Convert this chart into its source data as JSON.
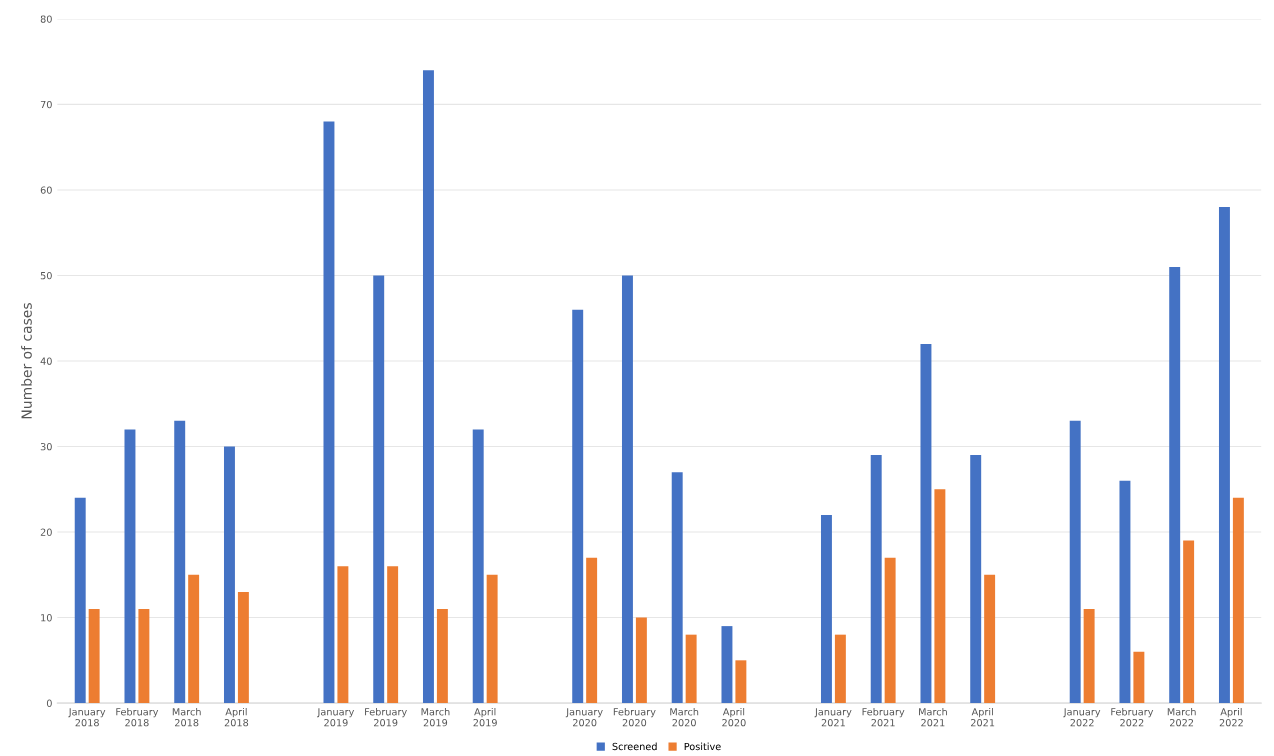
{
  "chart_data": {
    "type": "bar",
    "ylabel": "Number of cases",
    "categories": [
      "January\n2018",
      "February\n2018",
      "March\n2018",
      "April\n2018",
      null,
      "January\n2019",
      "February\n2019",
      "March\n2019",
      "April\n2019",
      null,
      "January\n2020",
      "February\n2020",
      "March\n2020",
      "April\n2020",
      null,
      "January\n2021",
      "February\n2021",
      "March\n2021",
      "April\n2021",
      null,
      "January\n2022",
      "February\n2022",
      "March\n2022",
      "April\n2022"
    ],
    "series": [
      {
        "name": "Screened",
        "color": "#4472c4",
        "values": [
          24,
          32,
          33,
          30,
          null,
          68,
          50,
          74,
          32,
          null,
          46,
          50,
          27,
          9,
          null,
          22,
          29,
          42,
          29,
          null,
          33,
          26,
          51,
          58
        ]
      },
      {
        "name": "Positive",
        "color": "#ed7d31",
        "values": [
          11,
          11,
          15,
          13,
          null,
          16,
          16,
          11,
          15,
          null,
          17,
          10,
          8,
          5,
          null,
          8,
          17,
          25,
          15,
          null,
          11,
          6,
          19,
          24
        ]
      }
    ],
    "ylim": [
      0,
      80
    ],
    "yticks": [
      0,
      10,
      20,
      30,
      40,
      50,
      60,
      70,
      80
    ],
    "grid": "y",
    "legend": "bottom"
  }
}
